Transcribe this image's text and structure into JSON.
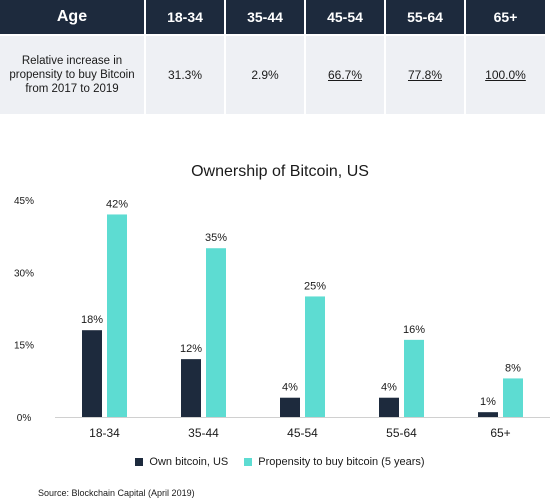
{
  "table": {
    "header_label": "Age",
    "columns": [
      "18-34",
      "35-44",
      "45-54",
      "55-64",
      "65+"
    ],
    "row_label": "Relative increase in propensity to buy Bitcoin from 2017 to 2019",
    "values": [
      "31.3%",
      "2.9%",
      "66.7%",
      "77.8%",
      "100.0%"
    ],
    "underlined": [
      false,
      false,
      true,
      true,
      true
    ]
  },
  "chart_data": {
    "type": "bar",
    "title": "Ownership of Bitcoin, US",
    "categories": [
      "18-34",
      "35-44",
      "45-54",
      "55-64",
      "65+"
    ],
    "series": [
      {
        "name": "Own bitcoin, US",
        "values": [
          18,
          12,
          4,
          4,
          1
        ],
        "labels": [
          "18%",
          "12%",
          "4%",
          "4%",
          "1%"
        ],
        "color": "#1d2a3d"
      },
      {
        "name": "Propensity to buy bitcoin (5 years)",
        "values": [
          42,
          35,
          25,
          16,
          8
        ],
        "labels": [
          "42%",
          "35%",
          "25%",
          "16%",
          "8%"
        ],
        "color": "#5ddcd2"
      }
    ],
    "ylim": [
      0,
      45
    ],
    "yticks": [
      0,
      15,
      30,
      45
    ],
    "ytick_labels": [
      "0%",
      "15%",
      "30%",
      "45%"
    ],
    "grid": false,
    "legend_position": "bottom"
  },
  "source": "Source: Blockchain Capital (April 2019)"
}
